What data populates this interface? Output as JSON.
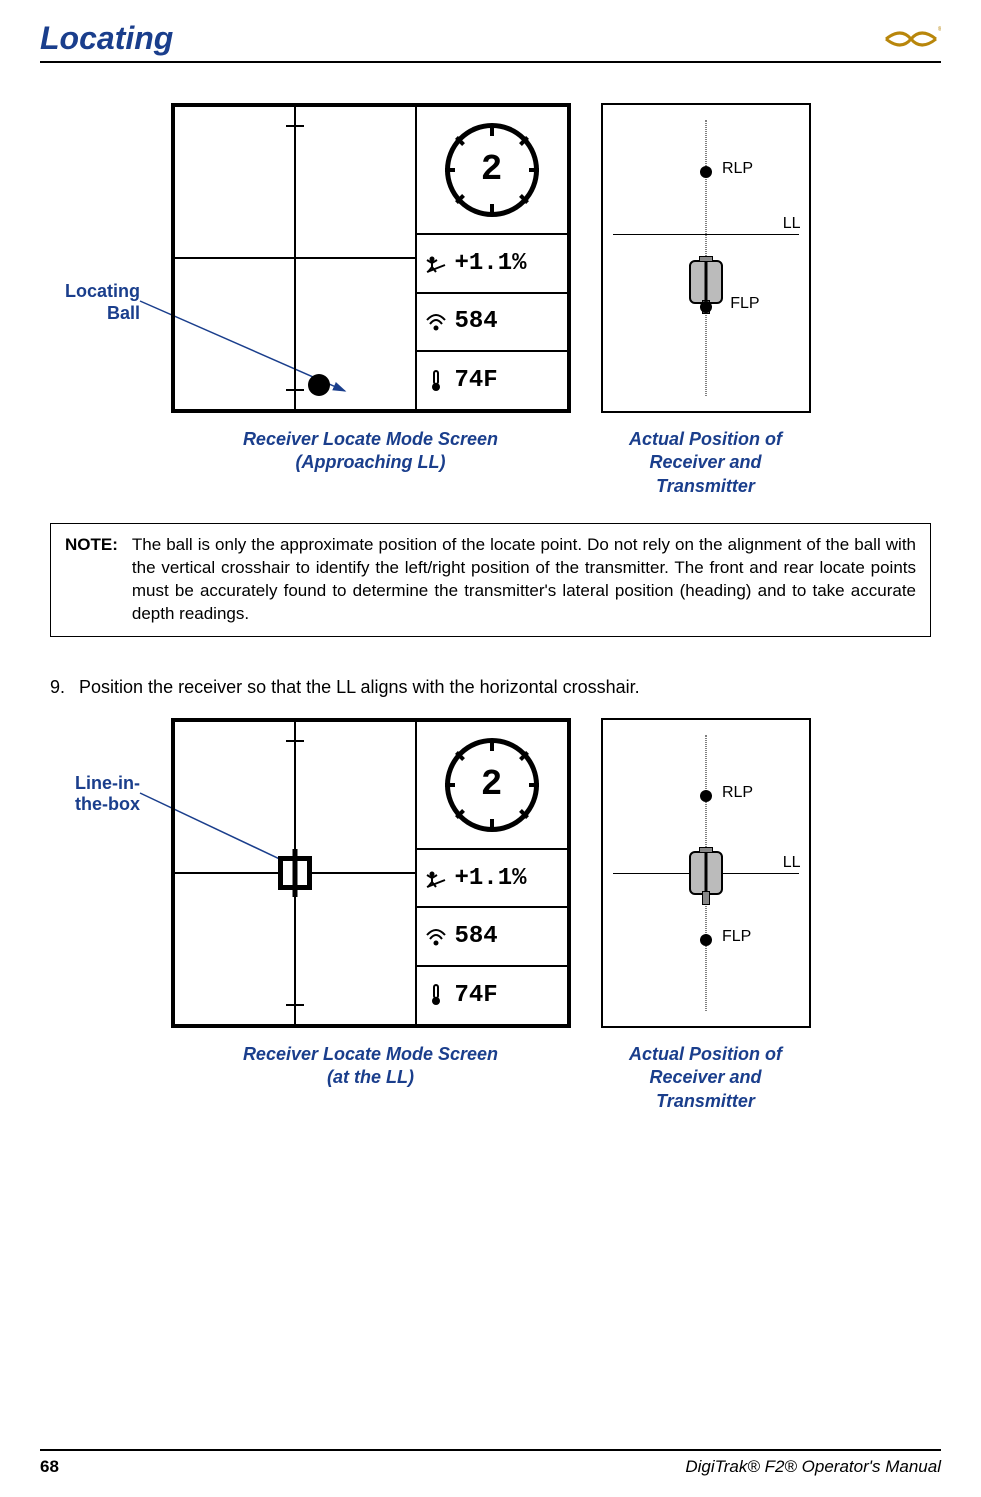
{
  "header": {
    "title": "Locating"
  },
  "fig1": {
    "callout": "Locating\nBall",
    "roll_value": "2",
    "pitch": "+1.1%",
    "signal": "584",
    "temp": "74F",
    "caption_left": "Receiver Locate Mode Screen\n(Approaching LL)",
    "caption_right": "Actual Position of\nReceiver and Transmitter",
    "pd": {
      "rlp": "RLP",
      "ll": "LL",
      "flp": "FLP"
    }
  },
  "note": {
    "label": "NOTE:",
    "text": "The ball is only the approximate position of the locate point. Do not rely on the alignment of the ball with the vertical crosshair to identify the left/right position of the transmitter. The front and rear locate points must be accurately found to determine the transmitter's lateral position (heading) and to take accurate depth readings."
  },
  "step9": {
    "num": "9.",
    "text": "Position the receiver so that the LL aligns with the horizontal crosshair."
  },
  "fig2": {
    "callout": "Line-in-\nthe-box",
    "roll_value": "2",
    "pitch": "+1.1%",
    "signal": "584",
    "temp": "74F",
    "caption_left": "Receiver Locate Mode Screen\n(at the LL)",
    "caption_right": "Actual Position of\nReceiver and Transmitter",
    "pd": {
      "rlp": "RLP",
      "ll": "LL",
      "flp": "FLP"
    }
  },
  "footer": {
    "page": "68",
    "manual": "DigiTrak® F2® Operator's Manual"
  },
  "colors": {
    "brand_blue": "#1a3e8c",
    "logo_gold": "#b8860b"
  }
}
